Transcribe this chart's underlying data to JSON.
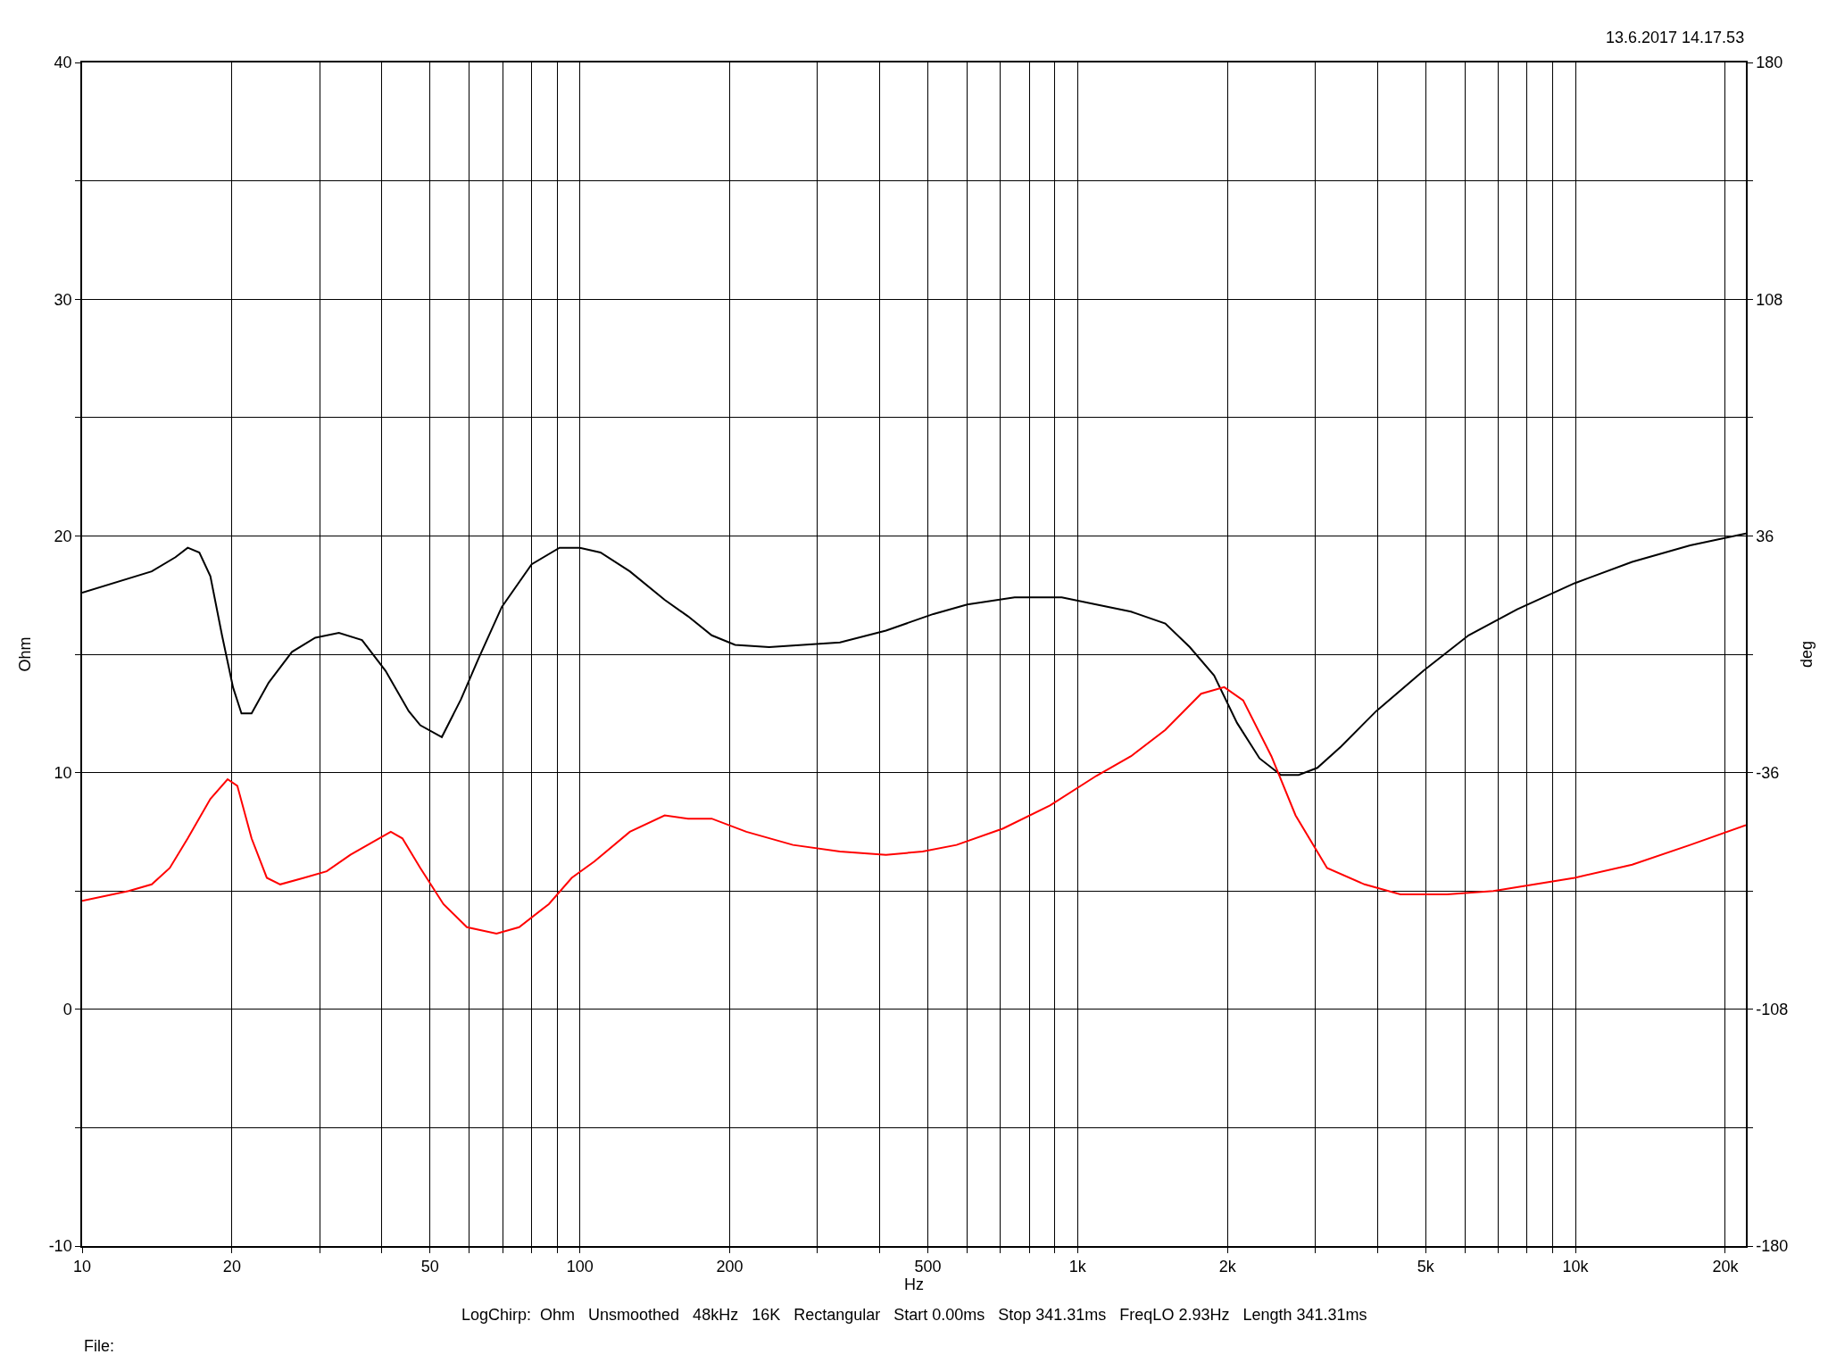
{
  "chart_data": {
    "type": "line",
    "xlabel": "Hz",
    "ylabel": "Ohm",
    "y2label": "deg",
    "log": "x",
    "grid": true,
    "marker": "none",
    "line_style": "solid",
    "xlim": [
      10,
      22000
    ],
    "xticks": [
      10,
      20,
      {
        "value": 30,
        "label": null
      },
      {
        "value": 40,
        "label": null
      },
      50,
      {
        "value": 60,
        "label": null
      },
      {
        "value": 70,
        "label": null
      },
      {
        "value": 80,
        "label": null
      },
      {
        "value": 90,
        "label": null
      },
      100,
      200,
      {
        "value": 300,
        "label": null
      },
      {
        "value": 400,
        "label": null
      },
      500,
      {
        "value": 600,
        "label": null
      },
      {
        "value": 700,
        "label": null
      },
      {
        "value": 800,
        "label": null
      },
      {
        "value": 900,
        "label": null
      },
      {
        "value": 1000,
        "label": "1k"
      },
      {
        "value": 2000,
        "label": "2k"
      },
      {
        "value": 3000,
        "label": null
      },
      {
        "value": 4000,
        "label": null
      },
      {
        "value": 5000,
        "label": "5k"
      },
      {
        "value": 6000,
        "label": null
      },
      {
        "value": 7000,
        "label": null
      },
      {
        "value": 8000,
        "label": null
      },
      {
        "value": 9000,
        "label": null
      },
      {
        "value": 10000,
        "label": "10k"
      },
      {
        "value": 20000,
        "label": "20k"
      }
    ],
    "ylim": [
      -10,
      40
    ],
    "yticks": [
      -10,
      {
        "value": -5,
        "label": null
      },
      0,
      {
        "value": 5,
        "label": null
      },
      10,
      {
        "value": 15,
        "label": null
      },
      20,
      {
        "value": 25,
        "label": null
      },
      30,
      {
        "value": 35,
        "label": null
      },
      40
    ],
    "y2lim": [
      -180,
      180
    ],
    "y2ticks": [
      -180,
      {
        "value": -144,
        "label": null
      },
      -108,
      {
        "value": -72,
        "label": null
      },
      -36,
      {
        "value": 0,
        "label": null
      },
      36,
      {
        "value": 72,
        "label": null
      },
      108,
      {
        "value": 144,
        "label": null
      },
      180
    ],
    "annotations": [
      "13.6.2017 14.17.53",
      "LogChirp:  Ohm   Unsmoothed   48kHz   16K   Rectangular   Start 0.00ms   Stop 341.31ms   FreqLO 2.93Hz   Length 341.31ms",
      "File:"
    ],
    "series": [
      {
        "color": "#000000",
        "x": [
          10,
          13.8,
          15.4,
          16.3,
          17.2,
          18.1,
          19.1,
          20.1,
          20.9,
          21.9,
          23.7,
          26.4,
          29.4,
          32.8,
          36.5,
          40.7,
          45.3,
          47.8,
          52.8,
          57.7,
          62.5,
          69.7,
          80,
          91,
          100,
          110,
          126,
          148,
          165,
          184,
          205,
          240,
          333,
          412,
          513,
          600,
          747,
          929,
          1090,
          1280,
          1500,
          1680,
          1880,
          2090,
          2320,
          2560,
          2780,
          3030,
          3380,
          3980,
          4950,
          6100,
          7640,
          9960,
          13000,
          17000,
          22000
        ],
        "values": [
          17.6,
          18.5,
          19.1,
          19.5,
          19.3,
          18.3,
          15.8,
          13.6,
          12.5,
          12.5,
          13.8,
          15.1,
          15.7,
          15.9,
          15.6,
          14.3,
          12.6,
          12.0,
          11.5,
          13.1,
          14.8,
          17.0,
          18.8,
          19.5,
          19.5,
          19.3,
          18.5,
          17.3,
          16.6,
          15.8,
          15.4,
          15.3,
          15.5,
          16.0,
          16.7,
          17.1,
          17.4,
          17.4,
          17.1,
          16.8,
          16.3,
          15.3,
          14.1,
          12.1,
          10.6,
          9.9,
          9.9,
          10.2,
          11.1,
          12.6,
          14.3,
          15.8,
          16.9,
          18.0,
          18.9,
          19.6,
          20.1
        ]
      },
      {
        "color": "#ff0000",
        "axis": "y2",
        "x": [
          10,
          12.4,
          13.8,
          15,
          16.3,
          18.1,
          19.6,
          20.5,
          21.9,
          23.5,
          25,
          27.9,
          31,
          34.6,
          38.5,
          41.7,
          44,
          47.8,
          53.2,
          59.3,
          68,
          75.5,
          86.6,
          96.3,
          107,
          126,
          148,
          165,
          184,
          216,
          268,
          333,
          412,
          488,
          571,
          708,
          880,
          1090,
          1280,
          1500,
          1770,
          1970,
          2150,
          2450,
          2740,
          3170,
          3770,
          4450,
          5520,
          6840,
          9960,
          13000,
          17000,
          22000
        ],
        "values": [
          -75,
          -72,
          -70,
          -65,
          -56,
          -44,
          -38,
          -40,
          -56,
          -68,
          -70,
          -68,
          -66,
          -61,
          -57,
          -54,
          -56,
          -65,
          -76,
          -83,
          -85,
          -83,
          -76,
          -68,
          -63,
          -54,
          -49,
          -50,
          -50,
          -54,
          -58,
          -60,
          -61,
          -60,
          -58,
          -53,
          -46,
          -37,
          -31,
          -23,
          -12,
          -10,
          -14,
          -31,
          -49,
          -65,
          -70,
          -73,
          -73,
          -72,
          -68,
          -64,
          -58,
          -52
        ]
      }
    ]
  }
}
